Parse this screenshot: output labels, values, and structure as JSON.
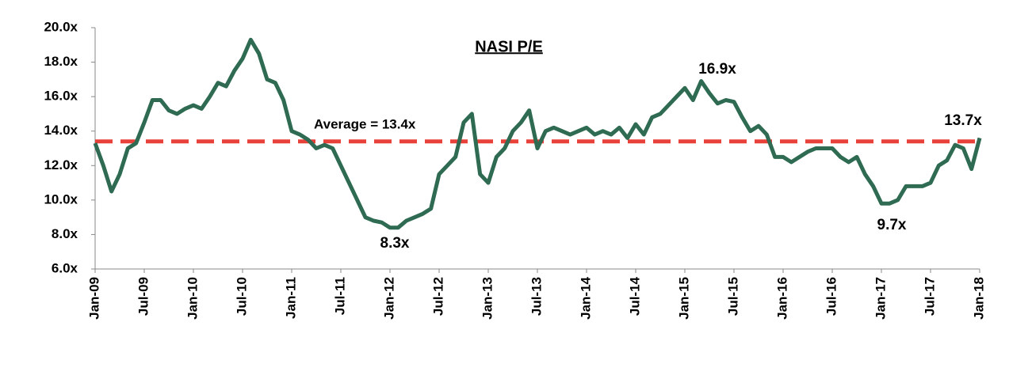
{
  "chart_data": {
    "type": "line",
    "title": "NASI P/E",
    "categories": [
      "Jan-09",
      null,
      null,
      null,
      null,
      null,
      "Jul-09",
      null,
      null,
      null,
      null,
      null,
      "Jan-10",
      null,
      null,
      null,
      null,
      null,
      "Jul-10",
      null,
      null,
      null,
      null,
      null,
      "Jan-11",
      null,
      null,
      null,
      null,
      null,
      "Jul-11",
      null,
      null,
      null,
      null,
      null,
      "Jan-12",
      null,
      null,
      null,
      null,
      null,
      "Jul-12",
      null,
      null,
      null,
      null,
      null,
      "Jan-13",
      null,
      null,
      null,
      null,
      null,
      "Jul-13",
      null,
      null,
      null,
      null,
      null,
      "Jan-14",
      null,
      null,
      null,
      null,
      null,
      "Jul-14",
      null,
      null,
      null,
      null,
      null,
      "Jan-15",
      null,
      null,
      null,
      null,
      null,
      "Jul-15",
      null,
      null,
      null,
      null,
      null,
      "Jan-16",
      null,
      null,
      null,
      null,
      null,
      "Jul-16",
      null,
      null,
      null,
      null,
      null,
      "Jan-17",
      null,
      null,
      null,
      null,
      null,
      "Jul-17",
      null,
      null,
      null,
      null,
      null,
      "Jan-18"
    ],
    "series": [
      {
        "name": "NASI P/E",
        "color": "#2e6b52",
        "values": [
          13.3,
          12.0,
          10.5,
          11.5,
          13.0,
          13.3,
          14.5,
          15.8,
          15.8,
          15.2,
          15.0,
          15.3,
          15.5,
          15.3,
          16.0,
          16.8,
          16.6,
          17.5,
          18.2,
          19.3,
          18.5,
          17.0,
          16.8,
          15.8,
          14.0,
          13.8,
          13.5,
          13.0,
          13.2,
          13.0,
          12.0,
          11.0,
          10.0,
          9.0,
          8.8,
          8.7,
          8.4,
          8.4,
          8.8,
          9.0,
          9.2,
          9.5,
          11.5,
          12.0,
          12.5,
          14.5,
          15.0,
          11.5,
          11.0,
          12.5,
          13.0,
          14.0,
          14.5,
          15.2,
          13.0,
          14.0,
          14.2,
          14.0,
          13.8,
          14.0,
          14.2,
          13.8,
          14.0,
          13.8,
          14.2,
          13.6,
          14.4,
          13.8,
          14.8,
          15.0,
          15.5,
          16.0,
          16.5,
          15.8,
          16.9,
          16.2,
          15.6,
          15.8,
          15.7,
          14.8,
          14.0,
          14.3,
          13.8,
          12.5,
          12.5,
          12.2,
          12.5,
          12.8,
          13.0,
          13.0,
          13.0,
          12.5,
          12.2,
          12.5,
          11.5,
          10.8,
          9.8,
          9.8,
          10.0,
          10.8,
          10.8,
          10.8,
          11.0,
          12.0,
          12.3,
          13.2,
          13.0,
          11.8,
          13.6
        ]
      }
    ],
    "average": {
      "value": 13.4,
      "label": "Average = 13.4x",
      "color": "#e8413a"
    },
    "annotations": [
      "16.9x",
      "8.3x",
      "9.7x",
      "13.7x"
    ],
    "ylim": [
      6,
      20
    ],
    "yticks": [
      {
        "value": 6,
        "label": "6.0x"
      },
      {
        "value": 8,
        "label": "8.0x"
      },
      {
        "value": 10,
        "label": "10.0x"
      },
      {
        "value": 12,
        "label": "12.0x"
      },
      {
        "value": 14,
        "label": "14.0x"
      },
      {
        "value": 16,
        "label": "16.0x"
      },
      {
        "value": 18,
        "label": "18.0x"
      },
      {
        "value": 20,
        "label": "20.0x"
      }
    ]
  }
}
